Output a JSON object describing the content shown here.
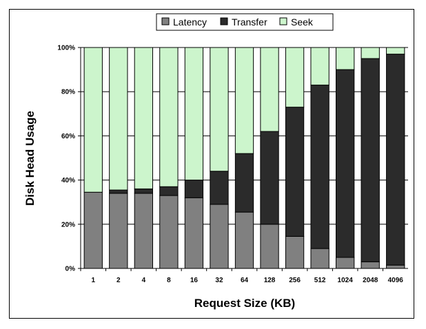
{
  "chart_data": {
    "type": "bar",
    "stacked": true,
    "normalized": true,
    "xlabel": "Request Size (KB)",
    "ylabel": "Disk Head Usage",
    "ylim": [
      0,
      100
    ],
    "y_ticks": [
      "0%",
      "20%",
      "40%",
      "60%",
      "80%",
      "100%"
    ],
    "y_tick_values": [
      0,
      20,
      40,
      60,
      80,
      100
    ],
    "grid": true,
    "legend_placement": "top",
    "categories": [
      "1",
      "2",
      "4",
      "8",
      "16",
      "32",
      "64",
      "128",
      "256",
      "512",
      "1024",
      "2048",
      "4096"
    ],
    "series": [
      {
        "name": "Latency",
        "color": "#808080",
        "values": [
          34.5,
          34,
          34,
          33,
          32,
          29,
          25.5,
          20,
          14.5,
          9,
          5,
          3,
          1.5
        ]
      },
      {
        "name": "Transfer",
        "color": "#2b2b2b",
        "values": [
          0,
          1.5,
          2,
          4,
          8,
          15,
          26.5,
          42,
          58.5,
          74,
          85,
          92,
          95.5
        ]
      },
      {
        "name": "Seek",
        "color": "#ccf5cc",
        "values": [
          65.5,
          64.5,
          64,
          63,
          60,
          56,
          48,
          38,
          27,
          17,
          10,
          5,
          3
        ]
      }
    ]
  }
}
